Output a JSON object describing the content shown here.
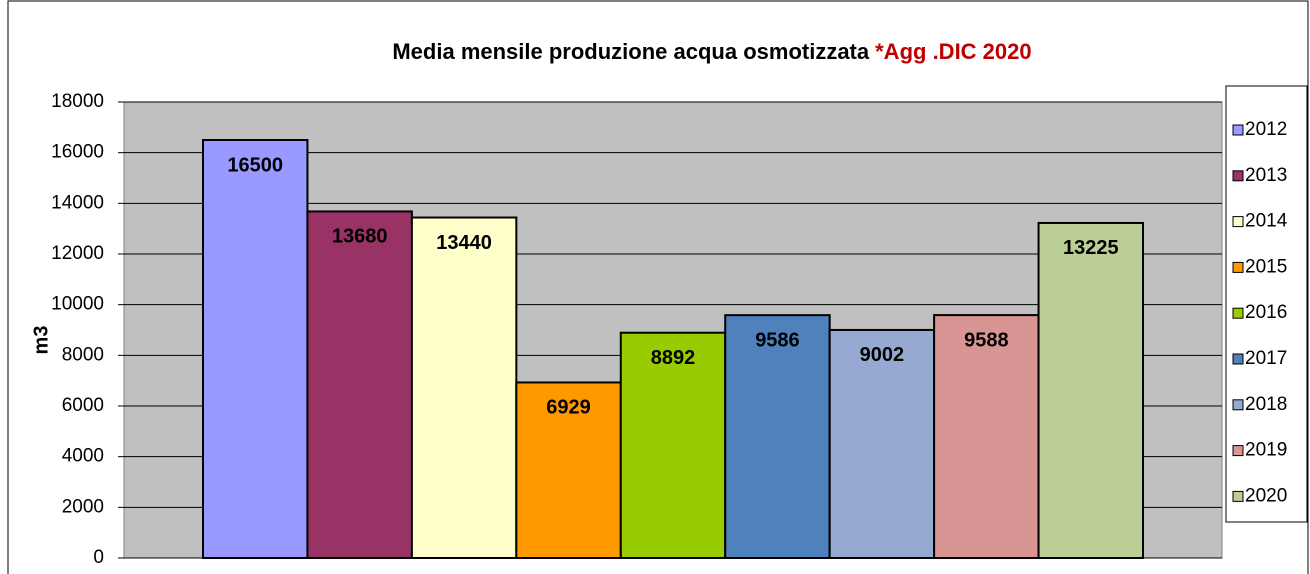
{
  "chart_data": {
    "type": "bar",
    "title": "Media mensile produzione acqua osmotizzata",
    "title_note": "*Agg .DIC 2020",
    "y_label": "m3",
    "categories": [
      null
    ],
    "series": [
      {
        "name": "2012",
        "color": "#9999ff",
        "values": [
          16500
        ]
      },
      {
        "name": "2013",
        "color": "#993366",
        "values": [
          13680
        ]
      },
      {
        "name": "2014",
        "color": "#ffffcc",
        "values": [
          13440
        ]
      },
      {
        "name": "2015",
        "color": "#ff9900",
        "values": [
          6929
        ]
      },
      {
        "name": "2016",
        "color": "#99cc00",
        "values": [
          8892
        ]
      },
      {
        "name": "2017",
        "color": "#4f81bd",
        "values": [
          9586
        ]
      },
      {
        "name": "2018",
        "color": "#95a9d1",
        "values": [
          9002
        ]
      },
      {
        "name": "2019",
        "color": "#d99594",
        "values": [
          9588
        ]
      },
      {
        "name": "2020",
        "color": "#bbce96",
        "values": [
          13225
        ]
      }
    ],
    "ylim": [
      0,
      18000
    ],
    "yticks": [
      0,
      2000,
      4000,
      6000,
      8000,
      10000,
      12000,
      14000,
      16000,
      18000
    ],
    "grid": true,
    "legend": "right"
  }
}
